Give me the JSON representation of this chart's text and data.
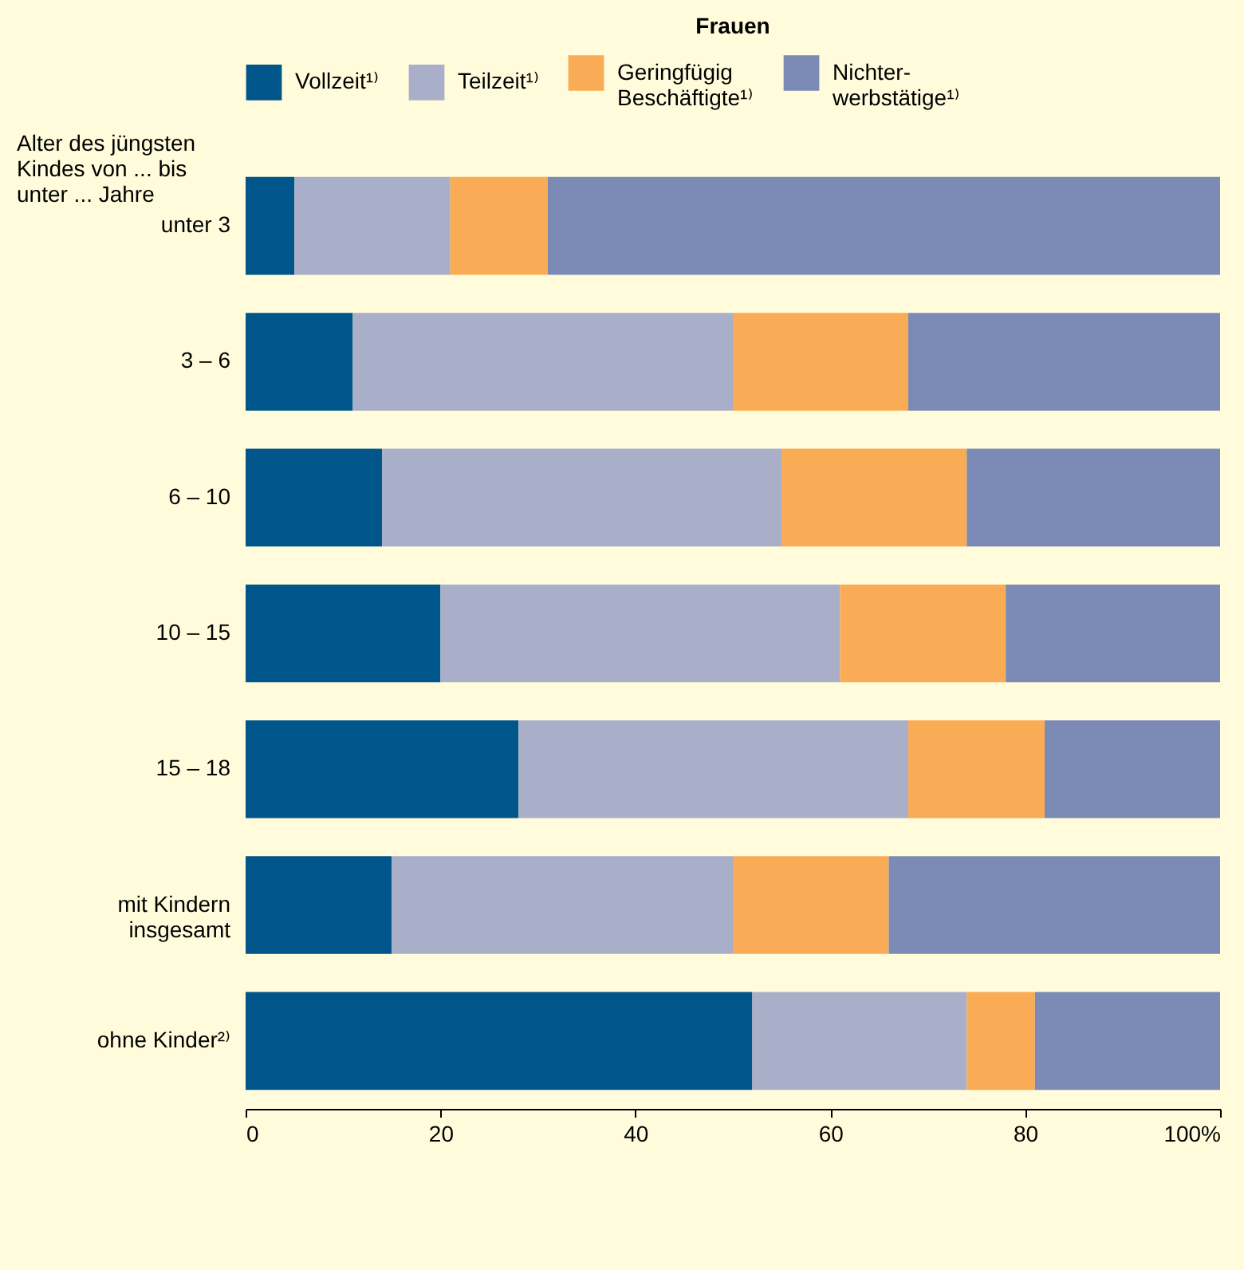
{
  "chart_data": {
    "type": "bar",
    "orientation": "horizontal",
    "stacked": true,
    "title": "Frauen",
    "ylabel": "Alter des jüngsten\nKindes von ... bis\nunter ... Jahre",
    "categories": [
      "unter 3",
      "3 – 6",
      "6 – 10",
      "10 – 15",
      "15 – 18",
      "mit Kindern\ninsgesamt",
      "ohne Kinder²⁾"
    ],
    "series": [
      {
        "name": "Vollzeit¹⁾",
        "color": "#00558a",
        "values": [
          5,
          11,
          14,
          20,
          28,
          15,
          52
        ]
      },
      {
        "name": "Teilzeit¹⁾",
        "color": "#a9aec9",
        "values": [
          16,
          39,
          41,
          41,
          40,
          35,
          22
        ]
      },
      {
        "name": "Geringfügig\nBeschäftigte¹⁾",
        "color": "#f9ab55",
        "values": [
          10,
          18,
          19,
          17,
          14,
          16,
          7
        ]
      },
      {
        "name": "Nichter-\nwerbstätige¹⁾",
        "color": "#7b8bb5",
        "values": [
          69,
          32,
          26,
          22,
          18,
          34,
          19
        ]
      }
    ],
    "xlim": [
      0,
      100
    ],
    "xticks": [
      0,
      20,
      40,
      60,
      80,
      {
        "value": 100,
        "label": "100%"
      }
    ],
    "grid": false,
    "legend": "top"
  }
}
